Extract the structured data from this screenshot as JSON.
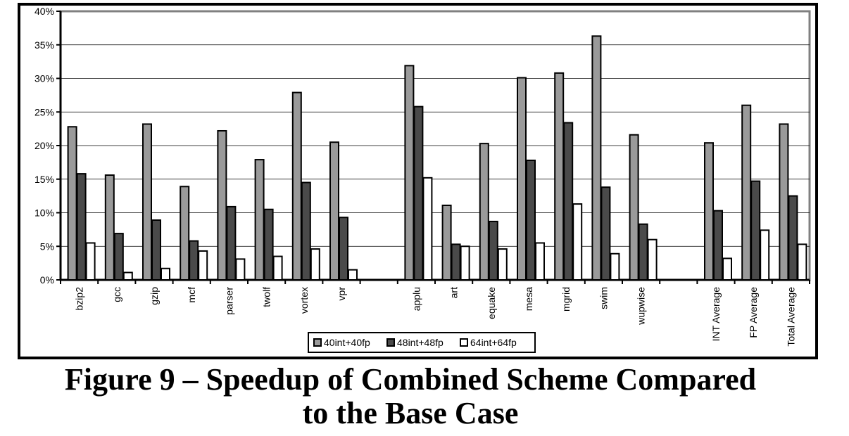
{
  "caption": {
    "line1": "Figure 9 – Speedup of Combined Scheme Compared",
    "line2": "to the Base Case"
  },
  "colors": {
    "series_fills": [
      "#9a9a9a",
      "#4a4a4a",
      "#ffffff"
    ],
    "plot_border": "#808080"
  },
  "chart_data": {
    "type": "bar",
    "title": "",
    "xlabel": "",
    "ylabel": "",
    "ylim": [
      0,
      40
    ],
    "y_ticks": [
      "0%",
      "5%",
      "10%",
      "15%",
      "20%",
      "25%",
      "30%",
      "35%",
      "40%"
    ],
    "grid": true,
    "legend_position": "bottom-center",
    "categories": [
      "bzip2",
      "gcc",
      "gzip",
      "mcf",
      "parser",
      "twolf",
      "vortex",
      "vpr",
      "",
      "applu",
      "art",
      "equake",
      "mesa",
      "mgrid",
      "swim",
      "wupwise",
      "",
      "INT Average",
      "FP Average",
      "Total Average"
    ],
    "series": [
      {
        "name": "40int+40fp",
        "values": [
          22.8,
          15.6,
          23.2,
          13.9,
          22.2,
          17.9,
          27.9,
          20.5,
          null,
          31.9,
          11.1,
          20.3,
          30.1,
          30.8,
          36.3,
          21.6,
          null,
          20.4,
          26.0,
          23.2
        ]
      },
      {
        "name": "48int+48fp",
        "values": [
          15.8,
          6.9,
          8.9,
          5.8,
          10.9,
          10.5,
          14.5,
          9.3,
          null,
          25.8,
          5.3,
          8.7,
          17.8,
          23.4,
          13.8,
          8.3,
          null,
          10.3,
          14.7,
          12.5
        ]
      },
      {
        "name": "64int+64fp",
        "values": [
          5.5,
          1.1,
          1.7,
          4.3,
          3.1,
          3.5,
          4.6,
          1.5,
          null,
          15.2,
          5.0,
          4.6,
          5.5,
          11.3,
          3.9,
          6.0,
          null,
          3.2,
          7.4,
          5.3
        ]
      }
    ]
  }
}
